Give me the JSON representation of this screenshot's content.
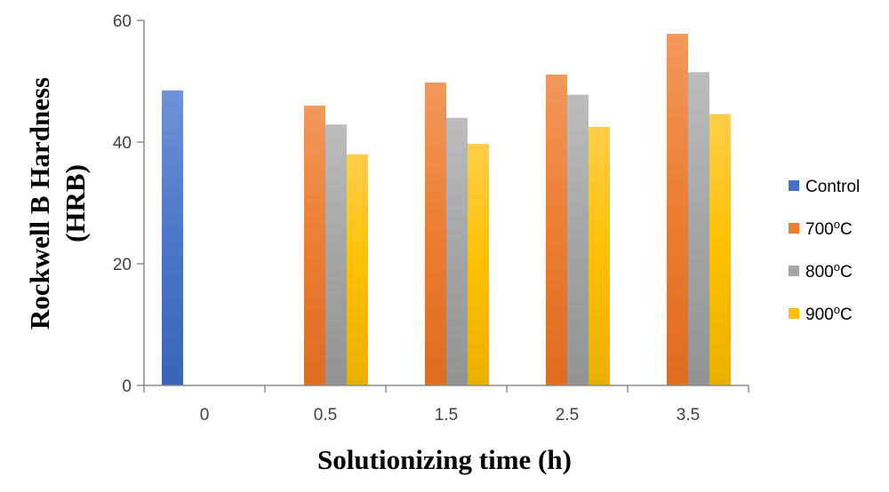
{
  "chart_data": {
    "type": "bar",
    "title": "",
    "xlabel": "Solutionizing time (h)",
    "ylabel_line1": "Rockwell B Hardness",
    "ylabel_line2": "(HRB)",
    "categories": [
      "0",
      "0.5",
      "1.5",
      "2.5",
      "3.5"
    ],
    "ylim": [
      0,
      60
    ],
    "yticks": [
      "0",
      "20",
      "40",
      "60"
    ],
    "grid": false,
    "legend_position": "right",
    "series": [
      {
        "name": "Control",
        "name_base": "Control",
        "name_sup": "",
        "name_suffix": "",
        "color": "#4472c4",
        "values": [
          48.5,
          null,
          null,
          null,
          null
        ]
      },
      {
        "name": "700°C",
        "name_base": "700",
        "name_sup": "o",
        "name_suffix": "C",
        "color": "#ed7d31",
        "values": [
          null,
          46,
          49.8,
          51.1,
          57.8
        ]
      },
      {
        "name": "800°C",
        "name_base": "800",
        "name_sup": "o",
        "name_suffix": "C",
        "color": "#a5a5a5",
        "values": [
          null,
          42.9,
          44,
          47.8,
          51.5
        ]
      },
      {
        "name": "900°C",
        "name_base": "900",
        "name_sup": "o",
        "name_suffix": "C",
        "color": "#ffc000",
        "values": [
          null,
          38,
          39.7,
          42.5,
          44.6
        ]
      }
    ]
  }
}
